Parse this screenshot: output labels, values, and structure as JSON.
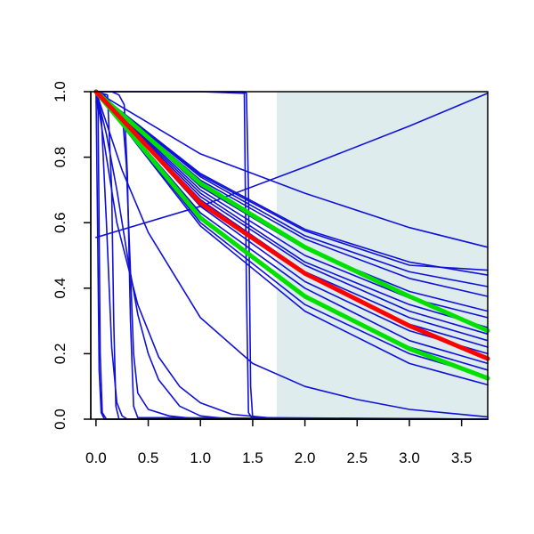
{
  "chart_data": {
    "type": "line",
    "title": "",
    "xlabel": "",
    "ylabel": "",
    "xlim": [
      -0.05,
      3.75
    ],
    "ylim": [
      0.0,
      1.0
    ],
    "x_ticks": [
      0.0,
      0.5,
      1.0,
      1.5,
      2.0,
      2.5,
      3.0,
      3.5
    ],
    "x_tick_labels": [
      "0.0",
      "0.5",
      "1.0",
      "1.5",
      "2.0",
      "2.5",
      "3.0",
      "3.5"
    ],
    "y_ticks": [
      0.0,
      0.2,
      0.4,
      0.6,
      0.8,
      1.0
    ],
    "y_tick_labels": [
      "0.0",
      "0.2",
      "0.4",
      "0.6",
      "0.8",
      "1.0"
    ],
    "grid": false,
    "legend": "none",
    "shaded_region": {
      "x_from": 1.73,
      "x_to": 3.75,
      "color": "#deeced"
    },
    "colors": {
      "series": "#1010d8",
      "highlight": "#ff0000",
      "bounds": "#00e000",
      "axis": "#000000"
    },
    "series": [
      {
        "color": "blue",
        "width": 1.6,
        "points": [
          [
            0.0,
            1.0
          ],
          [
            1.0,
            0.73
          ],
          [
            2.0,
            0.55
          ],
          [
            3.0,
            0.43
          ],
          [
            3.75,
            0.375
          ]
        ]
      },
      {
        "color": "blue",
        "width": 1.6,
        "points": [
          [
            0.0,
            1.0
          ],
          [
            1.0,
            0.71
          ],
          [
            2.0,
            0.52
          ],
          [
            3.0,
            0.39
          ],
          [
            3.75,
            0.33
          ]
        ]
      },
      {
        "color": "blue",
        "width": 1.6,
        "points": [
          [
            0.0,
            1.0
          ],
          [
            1.0,
            0.7
          ],
          [
            2.0,
            0.5
          ],
          [
            3.0,
            0.37
          ],
          [
            3.75,
            0.31
          ]
        ]
      },
      {
        "color": "blue",
        "width": 1.6,
        "points": [
          [
            0.0,
            1.0
          ],
          [
            1.0,
            0.69
          ],
          [
            2.0,
            0.48
          ],
          [
            3.0,
            0.35
          ],
          [
            3.75,
            0.28
          ]
        ]
      },
      {
        "color": "blue",
        "width": 1.6,
        "points": [
          [
            0.0,
            1.0
          ],
          [
            1.0,
            0.68
          ],
          [
            2.0,
            0.47
          ],
          [
            3.0,
            0.33
          ],
          [
            3.75,
            0.26
          ]
        ]
      },
      {
        "color": "blue",
        "width": 1.6,
        "points": [
          [
            0.0,
            1.0
          ],
          [
            1.0,
            0.67
          ],
          [
            2.0,
            0.45
          ],
          [
            3.0,
            0.31
          ],
          [
            3.75,
            0.24
          ]
        ]
      },
      {
        "color": "blue",
        "width": 1.6,
        "points": [
          [
            0.0,
            1.0
          ],
          [
            1.0,
            0.66
          ],
          [
            2.0,
            0.44
          ],
          [
            3.0,
            0.29
          ],
          [
            3.75,
            0.22
          ]
        ]
      },
      {
        "color": "blue",
        "width": 1.6,
        "points": [
          [
            0.0,
            1.0
          ],
          [
            1.0,
            0.65
          ],
          [
            2.0,
            0.42
          ],
          [
            3.0,
            0.27
          ],
          [
            3.75,
            0.2
          ]
        ]
      },
      {
        "color": "blue",
        "width": 1.6,
        "points": [
          [
            0.0,
            1.0
          ],
          [
            1.0,
            0.63
          ],
          [
            2.0,
            0.4
          ],
          [
            3.0,
            0.24
          ],
          [
            3.75,
            0.17
          ]
        ]
      },
      {
        "color": "blue",
        "width": 1.6,
        "points": [
          [
            0.0,
            1.0
          ],
          [
            1.0,
            0.61
          ],
          [
            2.0,
            0.37
          ],
          [
            3.0,
            0.22
          ],
          [
            3.75,
            0.15
          ]
        ]
      },
      {
        "color": "blue",
        "width": 1.6,
        "points": [
          [
            0.0,
            1.0
          ],
          [
            1.0,
            0.6
          ],
          [
            2.0,
            0.35
          ],
          [
            3.0,
            0.2
          ],
          [
            3.75,
            0.13
          ]
        ]
      },
      {
        "color": "blue",
        "width": 1.6,
        "points": [
          [
            0.0,
            1.0
          ],
          [
            1.0,
            0.59
          ],
          [
            2.0,
            0.33
          ],
          [
            3.0,
            0.17
          ],
          [
            3.75,
            0.105
          ]
        ]
      },
      {
        "color": "blue",
        "width": 1.6,
        "points": [
          [
            0.0,
            1.0
          ],
          [
            1.0,
            0.74
          ],
          [
            2.0,
            0.56
          ],
          [
            3.0,
            0.45
          ],
          [
            3.75,
            0.405
          ]
        ]
      },
      {
        "color": "blue",
        "width": 1.6,
        "points": [
          [
            0.0,
            1.0
          ],
          [
            1.0,
            0.75
          ],
          [
            2.0,
            0.58
          ],
          [
            3.0,
            0.48
          ],
          [
            3.75,
            0.44
          ]
        ]
      },
      {
        "color": "blue",
        "width": 1.6,
        "points": [
          [
            0.0,
            1.0
          ],
          [
            1.0,
            0.745
          ],
          [
            2.0,
            0.575
          ],
          [
            3.0,
            0.47
          ],
          [
            3.75,
            0.455
          ]
        ]
      },
      {
        "color": "blue",
        "width": 1.6,
        "points": [
          [
            0.0,
            1.0
          ],
          [
            1.0,
            0.81
          ],
          [
            2.0,
            0.69
          ],
          [
            3.0,
            0.585
          ],
          [
            3.75,
            0.525
          ]
        ]
      },
      {
        "color": "blue",
        "width": 1.6,
        "points": [
          [
            0.0,
            0.555
          ],
          [
            1.0,
            0.65
          ],
          [
            2.0,
            0.77
          ],
          [
            3.0,
            0.895
          ],
          [
            3.75,
            0.995
          ]
        ]
      },
      {
        "color": "blue",
        "width": 1.6,
        "points": [
          [
            0.0,
            1.0
          ],
          [
            0.25,
            0.76
          ],
          [
            0.5,
            0.57
          ],
          [
            1.0,
            0.31
          ],
          [
            1.5,
            0.17
          ],
          [
            2.0,
            0.1
          ],
          [
            2.5,
            0.06
          ],
          [
            3.0,
            0.03
          ],
          [
            3.75,
            0.007
          ]
        ]
      },
      {
        "color": "blue",
        "width": 1.6,
        "points": [
          [
            0.0,
            1.0
          ],
          [
            0.2,
            0.6
          ],
          [
            0.4,
            0.35
          ],
          [
            0.6,
            0.19
          ],
          [
            0.8,
            0.1
          ],
          [
            1.0,
            0.05
          ],
          [
            1.3,
            0.015
          ],
          [
            1.7,
            0.003
          ],
          [
            3.75,
            0.0
          ]
        ]
      },
      {
        "color": "blue",
        "width": 1.6,
        "points": [
          [
            0.0,
            1.0
          ],
          [
            0.1,
            0.87
          ],
          [
            0.2,
            0.7
          ],
          [
            0.3,
            0.5
          ],
          [
            0.4,
            0.32
          ],
          [
            0.5,
            0.2
          ],
          [
            0.6,
            0.12
          ],
          [
            0.8,
            0.04
          ],
          [
            1.0,
            0.01
          ],
          [
            1.3,
            0.0
          ],
          [
            3.75,
            0.0
          ]
        ]
      },
      {
        "color": "blue",
        "width": 1.6,
        "points": [
          [
            0.0,
            1.0
          ],
          [
            0.08,
            0.99
          ],
          [
            0.18,
            0.95
          ],
          [
            0.26,
            0.9
          ],
          [
            0.29,
            0.78
          ],
          [
            0.33,
            0.45
          ],
          [
            0.36,
            0.2
          ],
          [
            0.4,
            0.08
          ],
          [
            0.5,
            0.03
          ],
          [
            0.7,
            0.01
          ],
          [
            1.0,
            0.0
          ],
          [
            3.75,
            0.0
          ]
        ]
      },
      {
        "color": "blue",
        "width": 1.6,
        "points": [
          [
            0.0,
            1.0
          ],
          [
            0.15,
            1.0
          ],
          [
            0.22,
            0.99
          ],
          [
            0.27,
            0.96
          ],
          [
            0.3,
            0.75
          ],
          [
            0.33,
            0.3
          ],
          [
            0.36,
            0.04
          ],
          [
            0.4,
            0.005
          ],
          [
            3.75,
            0.0
          ]
        ]
      },
      {
        "color": "blue",
        "width": 1.6,
        "points": [
          [
            0.0,
            0.97
          ],
          [
            0.05,
            0.93
          ],
          [
            0.1,
            0.6
          ],
          [
            0.15,
            0.22
          ],
          [
            0.2,
            0.05
          ],
          [
            0.25,
            0.01
          ],
          [
            0.3,
            0.0
          ],
          [
            3.75,
            0.0
          ]
        ]
      },
      {
        "color": "blue",
        "width": 1.6,
        "points": [
          [
            0.0,
            1.0
          ],
          [
            0.11,
            0.99
          ],
          [
            0.15,
            0.7
          ],
          [
            0.17,
            0.3
          ],
          [
            0.19,
            0.04
          ],
          [
            0.22,
            0.0
          ],
          [
            3.75,
            0.0
          ]
        ]
      },
      {
        "color": "blue",
        "width": 1.6,
        "points": [
          [
            0.0,
            1.0
          ],
          [
            0.015,
            0.6
          ],
          [
            0.03,
            0.15
          ],
          [
            0.05,
            0.02
          ],
          [
            0.08,
            0.0
          ],
          [
            3.75,
            0.0
          ]
        ]
      },
      {
        "color": "blue",
        "width": 1.6,
        "points": [
          [
            0.0,
            1.0
          ],
          [
            0.02,
            0.94
          ],
          [
            0.04,
            0.2
          ],
          [
            0.06,
            0.02
          ],
          [
            0.1,
            0.0
          ],
          [
            3.75,
            0.0
          ]
        ]
      },
      {
        "color": "blue",
        "width": 1.6,
        "points": [
          [
            0.0,
            1.0
          ],
          [
            0.3,
            1.0
          ],
          [
            1.0,
            1.0
          ],
          [
            1.42,
            0.995
          ],
          [
            1.44,
            0.4
          ],
          [
            1.46,
            0.02
          ],
          [
            1.5,
            0.0
          ],
          [
            3.75,
            0.0
          ]
        ]
      },
      {
        "color": "blue",
        "width": 1.6,
        "points": [
          [
            0.0,
            1.0
          ],
          [
            0.5,
            1.0
          ],
          [
            1.4,
            1.0
          ],
          [
            1.44,
            0.995
          ],
          [
            1.46,
            0.7
          ],
          [
            1.48,
            0.1
          ],
          [
            1.5,
            0.005
          ],
          [
            3.75,
            0.0
          ]
        ]
      },
      {
        "color": "green",
        "width": 5,
        "points": [
          [
            0.0,
            1.0
          ],
          [
            1.0,
            0.72
          ],
          [
            2.0,
            0.525
          ],
          [
            3.0,
            0.375
          ],
          [
            3.75,
            0.27
          ]
        ]
      },
      {
        "color": "green",
        "width": 5,
        "points": [
          [
            0.0,
            1.0
          ],
          [
            1.0,
            0.615
          ],
          [
            2.0,
            0.375
          ],
          [
            3.0,
            0.215
          ],
          [
            3.75,
            0.125
          ]
        ]
      },
      {
        "color": "red",
        "width": 5,
        "points": [
          [
            0.0,
            1.0
          ],
          [
            1.0,
            0.66
          ],
          [
            2.0,
            0.445
          ],
          [
            3.0,
            0.285
          ],
          [
            3.75,
            0.185
          ]
        ]
      }
    ]
  }
}
